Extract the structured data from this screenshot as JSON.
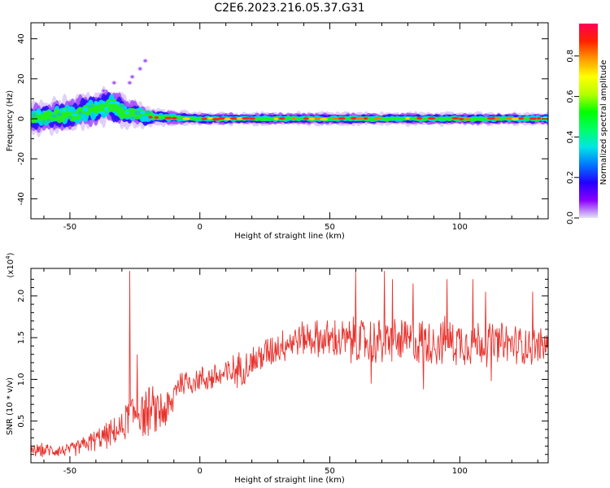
{
  "title": "C2E6.2023.216.05.37.G31",
  "colorbar": {
    "label": "Normalized spectral amplitude",
    "ticks": [
      "0.0",
      "0.2",
      "0.4",
      "0.6",
      "0.8"
    ],
    "tick_values": [
      0.0,
      0.2,
      0.4,
      0.6,
      0.8
    ],
    "range": [
      0,
      0.96
    ],
    "stops": [
      "#e3e3f5",
      "#8a00ff",
      "#2200ff",
      "#0077ff",
      "#00e5e5",
      "#00ff66",
      "#00ff00",
      "#b4ff00",
      "#ffff00",
      "#ff9900",
      "#ff2200",
      "#ff0055"
    ]
  },
  "chart_data": [
    {
      "type": "heatmap",
      "xlabel": "Height of straight line (km)",
      "ylabel": "Frequency (Hz)",
      "xlim": [
        -65,
        134
      ],
      "ylim": [
        -50,
        48
      ],
      "xticks": [
        -50,
        0,
        50,
        100
      ],
      "xtick_labels": [
        "-50",
        "0",
        "50",
        "100"
      ],
      "yticks": [
        -40,
        -20,
        0,
        20,
        40
      ],
      "ytick_labels": [
        "-40",
        "-20",
        "0",
        "20",
        "40"
      ],
      "band": {
        "description_points": [
          {
            "x": -65,
            "center_freq": 0,
            "halfwidth": 7
          },
          {
            "x": -50,
            "center_freq": 2,
            "halfwidth": 8
          },
          {
            "x": -40,
            "center_freq": 5,
            "halfwidth": 8
          },
          {
            "x": -35,
            "center_freq": 7,
            "halfwidth": 9
          },
          {
            "x": -30,
            "center_freq": 4,
            "halfwidth": 8
          },
          {
            "x": -20,
            "center_freq": 1,
            "halfwidth": 4
          },
          {
            "x": 0,
            "center_freq": 0,
            "halfwidth": 3
          },
          {
            "x": 50,
            "center_freq": 0,
            "halfwidth": 3
          },
          {
            "x": 134,
            "center_freq": 0,
            "halfwidth": 3
          }
        ],
        "outliers": [
          {
            "x": -37,
            "y": 14
          },
          {
            "x": -33,
            "y": 18
          },
          {
            "x": -27,
            "y": 18
          },
          {
            "x": -23,
            "y": 25
          },
          {
            "x": -21,
            "y": 29
          },
          {
            "x": -26,
            "y": 21
          }
        ]
      }
    },
    {
      "type": "line",
      "xlabel": "Height of straight line (km)",
      "ylabel": "SNR (10 * v/v)",
      "multiplier_label": "(x10",
      "multiplier_exp": "4",
      "multiplier_close": ")",
      "xlim": [
        -65,
        134
      ],
      "ylim": [
        0.0,
        2.33
      ],
      "xticks": [
        -50,
        0,
        50,
        100
      ],
      "xtick_labels": [
        "-50",
        "0",
        "50",
        "100"
      ],
      "yticks": [
        0.5,
        1.0,
        1.5,
        2.0
      ],
      "ytick_labels": [
        "0.5",
        "1.0",
        "1.5",
        "2.0"
      ],
      "color": "#e8342f",
      "envelope": [
        {
          "x": -65,
          "mean": 0.15,
          "spread": 0.08
        },
        {
          "x": -50,
          "mean": 0.15,
          "spread": 0.08
        },
        {
          "x": -42,
          "mean": 0.25,
          "spread": 0.12
        },
        {
          "x": -30,
          "mean": 0.4,
          "spread": 0.18
        },
        {
          "x": -27,
          "mean": 0.6,
          "spread": 0.25
        },
        {
          "x": -20,
          "mean": 0.6,
          "spread": 0.3
        },
        {
          "x": -11,
          "mean": 0.65,
          "spread": 0.25
        },
        {
          "x": -9,
          "mean": 0.95,
          "spread": 0.18
        },
        {
          "x": 0,
          "mean": 1.0,
          "spread": 0.15
        },
        {
          "x": 10,
          "mean": 1.05,
          "spread": 0.2
        },
        {
          "x": 20,
          "mean": 1.2,
          "spread": 0.2
        },
        {
          "x": 30,
          "mean": 1.4,
          "spread": 0.2
        },
        {
          "x": 40,
          "mean": 1.5,
          "spread": 0.2
        },
        {
          "x": 60,
          "mean": 1.45,
          "spread": 0.28
        },
        {
          "x": 80,
          "mean": 1.45,
          "spread": 0.28
        },
        {
          "x": 100,
          "mean": 1.45,
          "spread": 0.28
        },
        {
          "x": 134,
          "mean": 1.4,
          "spread": 0.22
        }
      ],
      "spikes": [
        {
          "x": -27,
          "y": 2.3
        },
        {
          "x": -24,
          "y": 1.3
        },
        {
          "x": 60,
          "y": 2.3
        },
        {
          "x": 71,
          "y": 2.3
        },
        {
          "x": 74,
          "y": 2.2
        },
        {
          "x": 82,
          "y": 2.15
        },
        {
          "x": 95,
          "y": 2.2
        },
        {
          "x": 105,
          "y": 2.2
        },
        {
          "x": 110,
          "y": 2.05
        },
        {
          "x": 128,
          "y": 2.05
        },
        {
          "x": 66,
          "y": 0.95
        },
        {
          "x": 86,
          "y": 0.88
        },
        {
          "x": 112,
          "y": 0.98
        }
      ]
    }
  ]
}
